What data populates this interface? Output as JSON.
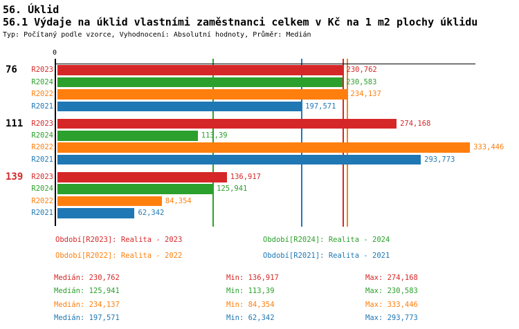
{
  "header": {
    "title": "56. Úklid",
    "subtitle": "56.1 Výdaje na úklid vlastními zaměstnanci celkem v Kč na 1 m2 plochy úklidu",
    "meta": "Typ: Počítaný podle vzorce, Vyhodnocení: Absolutní hodnoty, Průměr: Medián"
  },
  "colors": {
    "R2023": "#d62728",
    "R2024": "#2ca02c",
    "R2022": "#ff7f0e",
    "R2021": "#1f77b4",
    "axis": "#000000",
    "highlight_group": "#d62728"
  },
  "chart_data": {
    "type": "bar",
    "orientation": "horizontal",
    "xlabel": "",
    "ylabel": "",
    "xlim": [
      0,
      338
    ],
    "axis_zero_label": "0",
    "legend_position": "bottom",
    "series_order": [
      "R2023",
      "R2024",
      "R2022",
      "R2021"
    ],
    "groups": [
      {
        "label": "76",
        "label_color": "#000000",
        "bars": [
          {
            "series": "R2023",
            "value": 230.762,
            "display": "230,762"
          },
          {
            "series": "R2024",
            "value": 230.583,
            "display": "230,583"
          },
          {
            "series": "R2022",
            "value": 234.137,
            "display": "234,137"
          },
          {
            "series": "R2021",
            "value": 197.571,
            "display": "197,571"
          }
        ]
      },
      {
        "label": "111",
        "label_color": "#000000",
        "bars": [
          {
            "series": "R2023",
            "value": 274.168,
            "display": "274,168"
          },
          {
            "series": "R2024",
            "value": 113.39,
            "display": "113,39"
          },
          {
            "series": "R2022",
            "value": 333.446,
            "display": "333,446"
          },
          {
            "series": "R2021",
            "value": 293.773,
            "display": "293,773"
          }
        ]
      },
      {
        "label": "139",
        "label_color": "#d62728",
        "bars": [
          {
            "series": "R2023",
            "value": 136.917,
            "display": "136,917"
          },
          {
            "series": "R2024",
            "value": 125.941,
            "display": "125,941"
          },
          {
            "series": "R2022",
            "value": 84.354,
            "display": "84,354"
          },
          {
            "series": "R2021",
            "value": 62.342,
            "display": "62,342"
          }
        ]
      }
    ],
    "median_lines": [
      {
        "series": "R2024",
        "value": 125.941
      },
      {
        "series": "R2021",
        "value": 197.571
      },
      {
        "series": "R2023",
        "value": 230.762
      },
      {
        "series": "R2022",
        "value": 234.137
      }
    ]
  },
  "legend": [
    {
      "series": "R2023",
      "label": "Období[R2023]: Realita - 2023"
    },
    {
      "series": "R2024",
      "label": "Období[R2024]: Realita - 2024"
    },
    {
      "series": "R2022",
      "label": "Období[R2022]: Realita - 2022"
    },
    {
      "series": "R2021",
      "label": "Období[R2021]: Realita - 2021"
    }
  ],
  "stats_labels": {
    "median": "Medián:",
    "min": "Min:",
    "max": "Max:"
  },
  "stats": [
    {
      "series": "R2023",
      "median": "230,762",
      "min": "136,917",
      "max": "274,168"
    },
    {
      "series": "R2024",
      "median": "125,941",
      "min": "113,39",
      "max": "230,583"
    },
    {
      "series": "R2022",
      "median": "234,137",
      "min": "84,354",
      "max": "333,446"
    },
    {
      "series": "R2021",
      "median": "197,571",
      "min": "62,342",
      "max": "293,773"
    }
  ]
}
